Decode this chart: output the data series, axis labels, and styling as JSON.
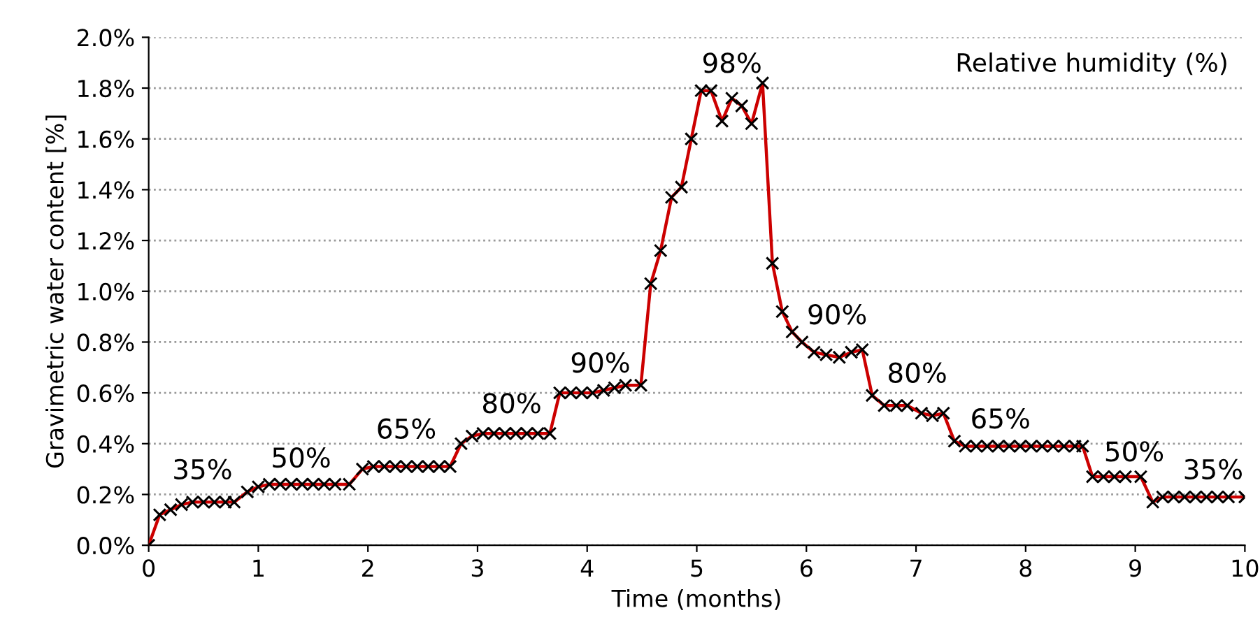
{
  "chart_data": {
    "type": "line",
    "xlabel": "Time (months)",
    "ylabel": "Gravimetric water content [%]",
    "xlim": [
      0,
      10
    ],
    "xticks": [
      0,
      1,
      2,
      3,
      4,
      5,
      6,
      7,
      8,
      9,
      10
    ],
    "ylim": [
      0,
      2.0
    ],
    "yticks": [
      {
        "value": 0,
        "label": "0.0%"
      },
      {
        "value": 0.2,
        "label": "0.2%"
      },
      {
        "value": 0.4,
        "label": "0.4%"
      },
      {
        "value": 0.6,
        "label": "0.6%"
      },
      {
        "value": 0.8,
        "label": "0.8%"
      },
      {
        "value": 1.0,
        "label": "1.0%"
      },
      {
        "value": 1.2,
        "label": "1.2%"
      },
      {
        "value": 1.4,
        "label": "1.4%"
      },
      {
        "value": 1.6,
        "label": "1.6%"
      },
      {
        "value": 1.8,
        "label": "1.8%"
      },
      {
        "value": 2.0,
        "label": "2.0%"
      }
    ],
    "grid": "y",
    "marker": "cross",
    "line_style": "solid",
    "series": [
      {
        "color": "#cc0000",
        "x": [
          0,
          0.1,
          0.2,
          0.3,
          0.4,
          0.5,
          0.6,
          0.7,
          0.78,
          0.9,
          1.0,
          1.1,
          1.2,
          1.3,
          1.4,
          1.5,
          1.6,
          1.7,
          1.83,
          1.95,
          2.05,
          2.15,
          2.25,
          2.35,
          2.45,
          2.55,
          2.65,
          2.75,
          2.85,
          2.95,
          3.05,
          3.15,
          3.25,
          3.35,
          3.45,
          3.55,
          3.66,
          3.75,
          3.85,
          3.95,
          4.05,
          4.15,
          4.25,
          4.35,
          4.49,
          4.58,
          4.67,
          4.77,
          4.86,
          4.95,
          5.04,
          5.13,
          5.23,
          5.32,
          5.41,
          5.5,
          5.6,
          5.69,
          5.78,
          5.87,
          5.96,
          6.07,
          6.18,
          6.3,
          6.41,
          6.51,
          6.6,
          6.71,
          6.82,
          6.92,
          7.05,
          7.15,
          7.25,
          7.35,
          7.45,
          7.55,
          7.65,
          7.75,
          7.85,
          7.95,
          8.05,
          8.15,
          8.25,
          8.35,
          8.45,
          8.52,
          8.61,
          8.71,
          8.81,
          8.91,
          9.05,
          9.16,
          9.25,
          9.35,
          9.45,
          9.55,
          9.65,
          9.75,
          9.85,
          10.0
        ],
        "values": [
          0,
          0.12,
          0.14,
          0.16,
          0.17,
          0.17,
          0.17,
          0.17,
          0.17,
          0.21,
          0.23,
          0.24,
          0.24,
          0.24,
          0.24,
          0.24,
          0.24,
          0.24,
          0.24,
          0.3,
          0.31,
          0.31,
          0.31,
          0.31,
          0.31,
          0.31,
          0.31,
          0.31,
          0.4,
          0.43,
          0.44,
          0.44,
          0.44,
          0.44,
          0.44,
          0.44,
          0.44,
          0.6,
          0.6,
          0.6,
          0.6,
          0.61,
          0.62,
          0.63,
          0.63,
          1.03,
          1.16,
          1.37,
          1.41,
          1.6,
          1.79,
          1.79,
          1.67,
          1.76,
          1.73,
          1.66,
          1.82,
          1.11,
          0.92,
          0.84,
          0.8,
          0.76,
          0.75,
          0.74,
          0.76,
          0.77,
          0.59,
          0.55,
          0.55,
          0.55,
          0.52,
          0.51,
          0.52,
          0.41,
          0.39,
          0.39,
          0.39,
          0.39,
          0.39,
          0.39,
          0.39,
          0.39,
          0.39,
          0.39,
          0.39,
          0.39,
          0.27,
          0.27,
          0.27,
          0.27,
          0.27,
          0.17,
          0.19,
          0.19,
          0.19,
          0.19,
          0.19,
          0.19,
          0.19,
          0.19
        ]
      }
    ],
    "annotations": [
      "35%",
      "50%",
      "65%",
      "80%",
      "90%",
      "98%",
      "90%",
      "80%",
      "65%",
      "50%",
      "35%",
      "Relative humidity (%)"
    ]
  }
}
